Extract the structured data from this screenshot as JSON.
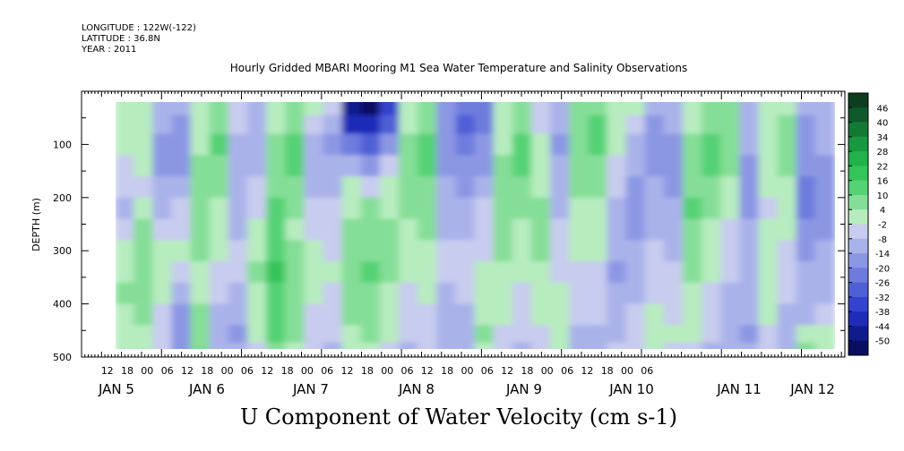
{
  "header": {
    "longitude": "LONGITUDE : 122W(-122)",
    "latitude": "LATITUDE : 36.8N",
    "year": "YEAR : 2011"
  },
  "chart_data": {
    "type": "heatmap",
    "title": "Hourly Gridded MBARI Mooring M1 Sea Water Temperature and Salinity Observations",
    "xlabel": "U Component of Water Velocity (cm s-1)",
    "ylabel": "DEPTH (m)",
    "y_range": [
      0,
      500
    ],
    "y_ticks": [
      100,
      200,
      300,
      400,
      500
    ],
    "y_tick_labels": [
      "100",
      "200",
      "300",
      "400",
      "500"
    ],
    "x_hour_labels": [
      "12",
      "18",
      "00",
      "06",
      "12",
      "18",
      "00",
      "06",
      "12",
      "18",
      "00",
      "06",
      "12",
      "18",
      "00",
      "06",
      "12",
      "18",
      "00",
      "06",
      "12",
      "18",
      "00",
      "06",
      "12",
      "18",
      "00",
      "06"
    ],
    "x_day_labels": [
      "JAN 5",
      "JAN 6",
      "JAN 7",
      "JAN 8",
      "JAN 9",
      "JAN 10",
      "JAN 11",
      "JAN 12"
    ],
    "colorbar_labels": [
      "46",
      "40",
      "34",
      "28",
      "22",
      "16",
      "10",
      "4",
      "-2",
      "-8",
      "-14",
      "-20",
      "-26",
      "-32",
      "-38",
      "-44",
      "-50"
    ],
    "colorbar_colors": [
      "#0b3d1e",
      "#0f5a2a",
      "#137a35",
      "#18993f",
      "#22b14a",
      "#34c45a",
      "#55d274",
      "#85de97",
      "#b7ecbf",
      "#c8ccee",
      "#aab2ea",
      "#8c97e4",
      "#6e7bdd",
      "#4f5fd6",
      "#3443ce",
      "#1e2cb8",
      "#101c8c",
      "#070f5e"
    ],
    "series": [
      {
        "depth": 30,
        "values": [
          6,
          9,
          -4,
          -8,
          5,
          10,
          3,
          -5,
          6,
          12,
          4,
          -2,
          -40,
          -45,
          -30,
          6,
          10,
          -9,
          -20,
          -15,
          5,
          12,
          3,
          -6,
          10,
          14,
          8,
          4,
          -8,
          -5,
          6,
          12,
          10,
          -4,
          4,
          8,
          -8,
          -4
        ]
      },
      {
        "depth": 60,
        "values": [
          5,
          8,
          -6,
          -10,
          4,
          12,
          2,
          -6,
          8,
          15,
          -2,
          -6,
          -34,
          -38,
          -22,
          8,
          12,
          -10,
          -24,
          -18,
          6,
          14,
          2,
          -8,
          12,
          16,
          6,
          -2,
          -10,
          -8,
          8,
          14,
          12,
          -6,
          6,
          10,
          -10,
          -6
        ]
      },
      {
        "depth": 100,
        "values": [
          4,
          6,
          -10,
          -12,
          8,
          16,
          -4,
          -8,
          10,
          18,
          -6,
          -10,
          -20,
          -26,
          -10,
          12,
          16,
          -12,
          -18,
          -14,
          8,
          18,
          4,
          -10,
          14,
          18,
          4,
          -6,
          -12,
          -10,
          10,
          18,
          14,
          -8,
          8,
          12,
          -12,
          -8
        ]
      },
      {
        "depth": 140,
        "values": [
          2,
          4,
          -12,
          -10,
          10,
          14,
          -6,
          -4,
          12,
          16,
          -8,
          -8,
          -6,
          -12,
          -2,
          14,
          18,
          -10,
          -14,
          -10,
          10,
          16,
          6,
          -8,
          12,
          14,
          2,
          -8,
          -10,
          -12,
          12,
          16,
          10,
          -10,
          6,
          10,
          -14,
          -10
        ]
      },
      {
        "depth": 180,
        "values": [
          -2,
          2,
          -8,
          -6,
          12,
          10,
          -8,
          -2,
          14,
          12,
          -4,
          -6,
          4,
          2,
          6,
          12,
          14,
          -8,
          -10,
          -6,
          12,
          12,
          8,
          -6,
          10,
          10,
          -2,
          -10,
          -8,
          -10,
          14,
          12,
          6,
          -12,
          4,
          8,
          -16,
          -12
        ]
      },
      {
        "depth": 220,
        "values": [
          -4,
          6,
          -4,
          -2,
          14,
          8,
          -6,
          2,
          16,
          10,
          -2,
          -2,
          8,
          10,
          8,
          10,
          12,
          -6,
          -6,
          -2,
          14,
          10,
          10,
          -4,
          8,
          8,
          -4,
          -12,
          -6,
          -8,
          16,
          10,
          4,
          -10,
          2,
          6,
          -18,
          -14
        ]
      },
      {
        "depth": 260,
        "values": [
          2,
          10,
          0,
          2,
          12,
          6,
          -4,
          6,
          18,
          8,
          2,
          0,
          10,
          12,
          10,
          8,
          10,
          -4,
          -4,
          0,
          12,
          8,
          12,
          -2,
          6,
          6,
          -6,
          -10,
          -4,
          -6,
          14,
          8,
          2,
          -8,
          4,
          4,
          -14,
          -10
        ]
      },
      {
        "depth": 300,
        "values": [
          6,
          12,
          4,
          4,
          10,
          4,
          -2,
          8,
          20,
          10,
          4,
          2,
          12,
          14,
          12,
          6,
          8,
          -2,
          -2,
          2,
          10,
          6,
          10,
          0,
          4,
          4,
          -8,
          -8,
          -2,
          -4,
          12,
          6,
          0,
          -6,
          6,
          2,
          -10,
          -8
        ]
      },
      {
        "depth": 340,
        "values": [
          8,
          14,
          6,
          -2,
          8,
          2,
          0,
          10,
          22,
          12,
          6,
          4,
          14,
          16,
          10,
          4,
          6,
          0,
          0,
          4,
          8,
          4,
          8,
          2,
          2,
          2,
          -10,
          -6,
          0,
          -2,
          10,
          4,
          -2,
          -4,
          8,
          0,
          -8,
          -6
        ]
      },
      {
        "depth": 380,
        "values": [
          10,
          12,
          4,
          -6,
          6,
          -2,
          -4,
          8,
          20,
          14,
          4,
          2,
          12,
          14,
          8,
          2,
          4,
          -4,
          -2,
          6,
          6,
          2,
          6,
          4,
          0,
          0,
          -8,
          -4,
          2,
          0,
          8,
          2,
          -4,
          -6,
          6,
          -2,
          -6,
          -4
        ]
      },
      {
        "depth": 420,
        "values": [
          8,
          10,
          2,
          -10,
          10,
          -4,
          -8,
          6,
          18,
          12,
          2,
          0,
          10,
          12,
          6,
          0,
          2,
          -6,
          -4,
          8,
          4,
          0,
          4,
          6,
          -2,
          -2,
          -6,
          -2,
          4,
          2,
          6,
          0,
          -6,
          -8,
          4,
          -4,
          -4,
          -2
        ]
      },
      {
        "depth": 460,
        "values": [
          6,
          8,
          0,
          -12,
          12,
          -6,
          -10,
          4,
          16,
          10,
          0,
          -2,
          8,
          10,
          4,
          -2,
          0,
          -8,
          -6,
          10,
          2,
          -2,
          2,
          8,
          -4,
          -4,
          -4,
          0,
          6,
          4,
          4,
          -2,
          -8,
          -10,
          2,
          -6,
          8,
          6
        ]
      },
      {
        "depth": 485,
        "values": [
          4,
          6,
          -2,
          -10,
          10,
          -4,
          -8,
          2,
          14,
          8,
          -2,
          -4,
          6,
          8,
          2,
          -4,
          -2,
          -6,
          -4,
          8,
          0,
          -4,
          0,
          6,
          -6,
          -6,
          -2,
          2,
          4,
          2,
          2,
          -4,
          -6,
          -8,
          0,
          -4,
          10,
          8
        ]
      }
    ]
  }
}
